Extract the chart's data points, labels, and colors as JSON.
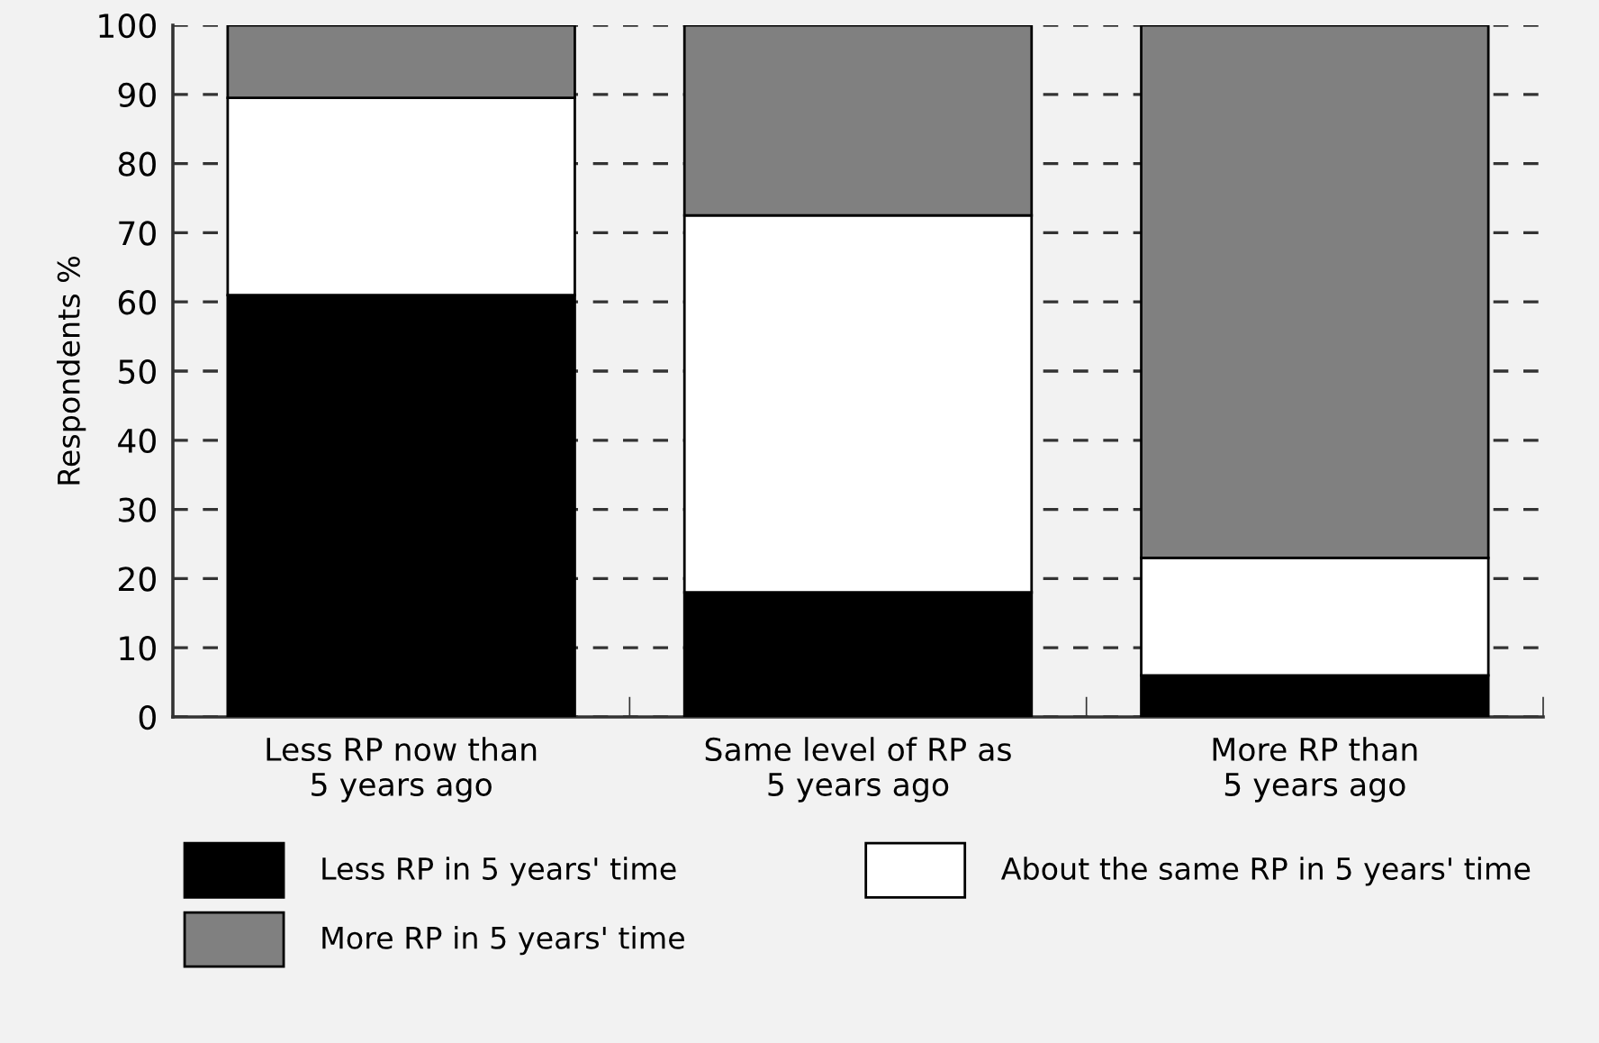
{
  "chart_data": {
    "type": "bar",
    "stacked": true,
    "ylabel": "Respondents %",
    "categories": [
      "Less RP now than\n5 years ago",
      "Same level of RP as\n5 years ago",
      "More RP than\n5 years ago"
    ],
    "series": [
      {
        "name": "Less RP in 5 years' time",
        "color": "#000000",
        "values": [
          61,
          18,
          6
        ]
      },
      {
        "name": "About the same RP in 5 years' time",
        "color": "#ffffff",
        "values": [
          28.5,
          54.5,
          17
        ]
      },
      {
        "name": "More RP in 5 years' time",
        "color": "#808080",
        "values": [
          10.5,
          27.5,
          77
        ]
      }
    ],
    "ylim": [
      0,
      100
    ],
    "yticks": [
      0,
      10,
      20,
      30,
      40,
      50,
      60,
      70,
      80,
      90,
      100
    ],
    "grid": "y",
    "legend": "bottom"
  }
}
